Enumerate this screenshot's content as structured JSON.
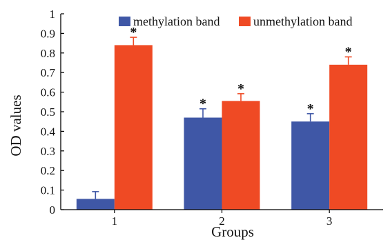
{
  "chart_data": {
    "type": "bar",
    "title": "",
    "xlabel": "Groups",
    "ylabel": "OD values",
    "categories": [
      "1",
      "2",
      "3"
    ],
    "ylim": [
      0,
      1
    ],
    "yticks": [
      "0",
      "0.1",
      "0.2",
      "0.3",
      "0.4",
      "0.5",
      "0.6",
      "0.7",
      "0.8",
      "0.9",
      "1"
    ],
    "grid": false,
    "legend_position": "top",
    "series": [
      {
        "name": "methylation band",
        "color": "#3f57a6",
        "values": [
          0.055,
          0.47,
          0.45
        ],
        "errors": [
          0.037,
          0.045,
          0.04
        ],
        "significance": [
          "",
          "*",
          "*"
        ]
      },
      {
        "name": "unmethylation band",
        "color": "#ef4a24",
        "values": [
          0.84,
          0.555,
          0.74
        ],
        "errors": [
          0.04,
          0.037,
          0.04
        ],
        "significance": [
          "*",
          "*",
          "*"
        ]
      }
    ]
  }
}
